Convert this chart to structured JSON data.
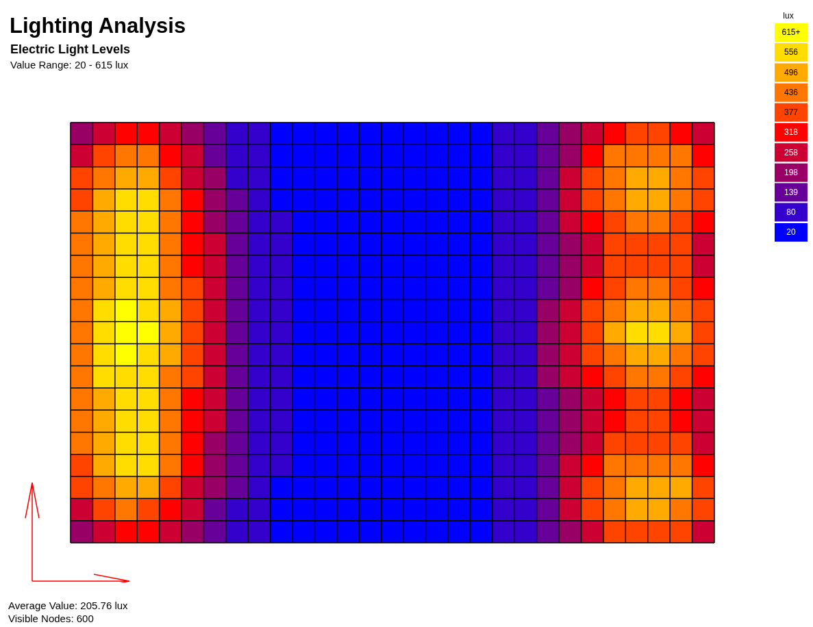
{
  "chart_data": {
    "type": "heatmap",
    "title": "Lighting Analysis",
    "subtitle": "Electric Light Levels",
    "clabel": "lux",
    "annotations": [
      "Value Range: 20 - 615 lux",
      "Average Value: 205.76 lux",
      "Visible Nodes: 600"
    ],
    "categories": [
      null,
      null,
      null,
      null,
      null,
      null,
      null,
      null,
      null,
      null,
      null,
      null,
      null,
      null,
      null,
      null,
      null,
      null,
      null,
      null,
      null,
      null,
      null,
      null,
      null,
      null,
      null,
      null,
      null
    ],
    "y_categories": [
      null,
      null,
      null,
      null,
      null,
      null,
      null,
      null,
      null,
      null,
      null,
      null,
      null,
      null,
      null,
      null,
      null,
      null,
      null
    ],
    "clim": [
      20,
      615
    ],
    "cticks": [
      20,
      80,
      139,
      198,
      258,
      318,
      377,
      436,
      496,
      556,
      {
        "value": 615,
        "label": "615+"
      }
    ],
    "cells": [
      [
        198,
        258,
        318,
        318,
        258,
        198,
        139,
        80,
        80,
        20,
        20,
        20,
        20,
        20,
        20,
        20,
        20,
        20,
        20,
        80,
        80,
        139,
        198,
        258,
        318,
        377,
        377,
        318,
        258
      ],
      [
        258,
        377,
        436,
        436,
        318,
        258,
        139,
        80,
        80,
        20,
        20,
        20,
        20,
        20,
        20,
        20,
        20,
        20,
        20,
        80,
        80,
        139,
        198,
        318,
        436,
        436,
        436,
        436,
        318
      ],
      [
        377,
        436,
        496,
        496,
        377,
        258,
        198,
        80,
        80,
        20,
        20,
        20,
        20,
        20,
        20,
        20,
        20,
        20,
        20,
        80,
        80,
        139,
        258,
        377,
        436,
        496,
        496,
        436,
        377
      ],
      [
        377,
        496,
        556,
        556,
        436,
        318,
        198,
        139,
        80,
        20,
        20,
        20,
        20,
        20,
        20,
        20,
        20,
        20,
        20,
        80,
        80,
        139,
        258,
        377,
        436,
        496,
        496,
        436,
        377
      ],
      [
        436,
        496,
        556,
        556,
        436,
        318,
        198,
        139,
        80,
        80,
        20,
        20,
        20,
        20,
        20,
        20,
        20,
        20,
        20,
        80,
        80,
        139,
        258,
        318,
        377,
        436,
        436,
        377,
        318
      ],
      [
        436,
        496,
        556,
        556,
        436,
        318,
        258,
        139,
        80,
        80,
        20,
        20,
        20,
        20,
        20,
        20,
        20,
        20,
        20,
        80,
        80,
        139,
        198,
        258,
        377,
        377,
        377,
        377,
        258
      ],
      [
        436,
        496,
        556,
        556,
        436,
        318,
        258,
        139,
        80,
        80,
        20,
        20,
        20,
        20,
        20,
        20,
        20,
        20,
        20,
        80,
        80,
        139,
        198,
        258,
        377,
        377,
        377,
        377,
        258
      ],
      [
        436,
        496,
        556,
        556,
        436,
        377,
        258,
        139,
        80,
        80,
        20,
        20,
        20,
        20,
        20,
        20,
        20,
        20,
        20,
        80,
        80,
        139,
        198,
        318,
        377,
        436,
        436,
        377,
        318
      ],
      [
        436,
        556,
        615,
        556,
        496,
        377,
        258,
        139,
        80,
        80,
        20,
        20,
        20,
        20,
        20,
        20,
        20,
        20,
        20,
        80,
        80,
        198,
        258,
        377,
        436,
        496,
        496,
        436,
        377
      ],
      [
        436,
        556,
        615,
        615,
        496,
        377,
        258,
        139,
        80,
        80,
        20,
        20,
        20,
        20,
        20,
        20,
        20,
        20,
        20,
        80,
        80,
        198,
        258,
        377,
        496,
        556,
        556,
        496,
        377
      ],
      [
        436,
        556,
        615,
        556,
        496,
        377,
        258,
        139,
        80,
        80,
        20,
        20,
        20,
        20,
        20,
        20,
        20,
        20,
        20,
        80,
        80,
        198,
        258,
        377,
        436,
        496,
        496,
        436,
        377
      ],
      [
        436,
        556,
        556,
        556,
        436,
        377,
        258,
        139,
        80,
        80,
        20,
        20,
        20,
        20,
        20,
        20,
        20,
        20,
        20,
        80,
        80,
        198,
        258,
        318,
        377,
        436,
        436,
        377,
        318
      ],
      [
        436,
        496,
        556,
        556,
        436,
        318,
        258,
        139,
        80,
        80,
        20,
        20,
        20,
        20,
        20,
        20,
        20,
        20,
        20,
        80,
        80,
        139,
        198,
        258,
        318,
        377,
        377,
        318,
        258
      ],
      [
        436,
        496,
        556,
        556,
        436,
        318,
        258,
        139,
        80,
        80,
        20,
        20,
        20,
        20,
        20,
        20,
        20,
        20,
        20,
        80,
        80,
        139,
        198,
        258,
        318,
        377,
        377,
        318,
        258
      ],
      [
        436,
        496,
        556,
        556,
        436,
        318,
        198,
        139,
        80,
        80,
        20,
        20,
        20,
        20,
        20,
        20,
        20,
        20,
        20,
        80,
        80,
        139,
        198,
        258,
        377,
        377,
        377,
        377,
        258
      ],
      [
        377,
        496,
        556,
        556,
        436,
        318,
        198,
        139,
        80,
        80,
        20,
        20,
        20,
        20,
        20,
        20,
        20,
        20,
        20,
        80,
        80,
        139,
        258,
        318,
        436,
        436,
        436,
        436,
        318
      ],
      [
        377,
        436,
        496,
        496,
        377,
        258,
        198,
        139,
        80,
        20,
        20,
        20,
        20,
        20,
        20,
        20,
        20,
        20,
        20,
        80,
        80,
        139,
        258,
        377,
        436,
        496,
        496,
        496,
        377
      ],
      [
        258,
        377,
        436,
        377,
        318,
        258,
        139,
        80,
        80,
        20,
        20,
        20,
        20,
        20,
        20,
        20,
        20,
        20,
        20,
        80,
        80,
        139,
        258,
        377,
        436,
        496,
        496,
        436,
        377
      ],
      [
        198,
        258,
        318,
        318,
        258,
        198,
        139,
        80,
        80,
        20,
        20,
        20,
        20,
        20,
        20,
        20,
        20,
        20,
        20,
        80,
        80,
        139,
        198,
        258,
        377,
        377,
        377,
        377,
        258
      ]
    ]
  }
}
